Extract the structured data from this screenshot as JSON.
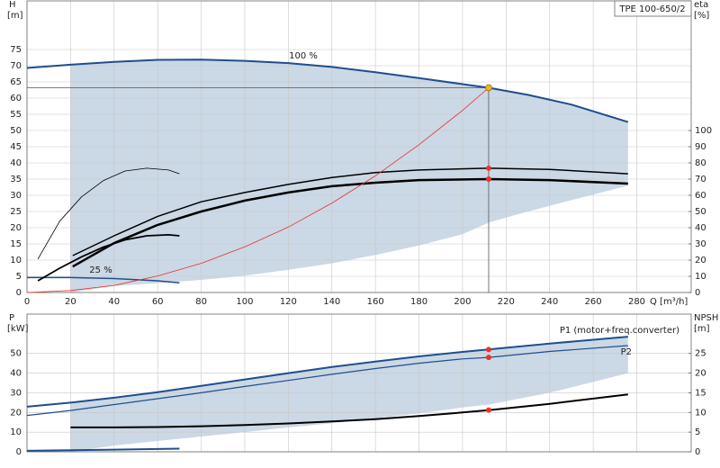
{
  "chart_data": [
    {
      "type": "line",
      "title": "TPE 100-650/2",
      "x_label": "Q [m³/h]",
      "y_label": "H",
      "y_unit": "[m]",
      "y2_label": "eta",
      "y2_unit": "[%]",
      "xlim": [
        0,
        305
      ],
      "xticks": [
        0,
        20,
        40,
        60,
        80,
        100,
        120,
        140,
        160,
        180,
        200,
        220,
        240,
        260,
        280
      ],
      "ylim": [
        0,
        90
      ],
      "yticks": [
        0,
        5,
        10,
        15,
        20,
        25,
        30,
        35,
        40,
        45,
        50,
        55,
        60,
        65,
        70,
        75
      ],
      "y2lim": [
        0,
        180
      ],
      "y2ticks": [
        0,
        10,
        20,
        30,
        40,
        50,
        60,
        70,
        80,
        90,
        100
      ],
      "grid": true,
      "band": {
        "color": "#cbd8e5",
        "x": [
          20,
          40,
          60,
          80,
          100,
          120,
          140,
          160,
          180,
          200,
          212,
          230,
          250,
          276
        ],
        "upper": [
          70.3,
          71.2,
          71.8,
          71.9,
          71.5,
          70.8,
          69.6,
          68.0,
          66.2,
          64.3,
          63.2,
          61.0,
          58.0,
          52.6
        ],
        "lower": [
          0,
          2,
          2.9,
          3.9,
          5.2,
          7,
          9,
          11.6,
          14.5,
          18,
          21.6,
          25,
          28.5,
          33
        ]
      },
      "series": [
        {
          "name": "100 %",
          "color": "#1f4e8c",
          "width": 2,
          "x": [
            0,
            20,
            40,
            60,
            80,
            100,
            120,
            140,
            160,
            180,
            200,
            212,
            230,
            250,
            276
          ],
          "values": [
            69.3,
            70.3,
            71.2,
            71.8,
            71.9,
            71.5,
            70.8,
            69.6,
            68.0,
            66.2,
            64.3,
            63.2,
            61.0,
            58.0,
            52.6
          ]
        },
        {
          "name": "25 %",
          "color": "#1f4e8c",
          "width": 1.5,
          "x": [
            0,
            20,
            40,
            60,
            70
          ],
          "values": [
            4.6,
            4.6,
            4.3,
            3.6,
            3.0
          ]
        },
        {
          "color": "#000000",
          "width": 1.5,
          "axis": "y2",
          "x": [
            21,
            40,
            60,
            80,
            100,
            120,
            140,
            160,
            180,
            212,
            240,
            276
          ],
          "values": [
            22.8,
            35,
            47,
            56,
            61.7,
            66.7,
            71,
            74,
            75.6,
            76.7,
            76,
            73.3
          ]
        },
        {
          "color": "#000000",
          "width": 2.5,
          "axis": "y2",
          "x": [
            21,
            40,
            60,
            80,
            100,
            120,
            140,
            160,
            180,
            212,
            240,
            276
          ],
          "values": [
            16,
            30.5,
            41.7,
            50,
            56.7,
            61.7,
            65.6,
            67.8,
            69.4,
            70,
            69.4,
            67.2
          ]
        },
        {
          "color": "#000000",
          "width": 0.8,
          "axis": "y2",
          "x": [
            5,
            15,
            25,
            35,
            45,
            55,
            65,
            70
          ],
          "values": [
            20.6,
            44,
            59,
            69,
            75,
            76.7,
            75.6,
            73.3
          ]
        },
        {
          "color": "#000000",
          "width": 1.8,
          "axis": "y2",
          "x": [
            5,
            15,
            25,
            35,
            45,
            55,
            65,
            70
          ],
          "values": [
            7.2,
            15,
            22,
            28,
            32.5,
            35,
            35.6,
            35
          ]
        },
        {
          "color": "#e8322c",
          "width": 0.8,
          "x": [
            0,
            20,
            40,
            60,
            80,
            100,
            120,
            140,
            160,
            180,
            200,
            212
          ],
          "values": [
            0,
            0.6,
            2.2,
            5.1,
            9,
            14.1,
            20.2,
            27.6,
            36,
            45.6,
            56.2,
            63.2
          ]
        }
      ],
      "duty_point": {
        "x": 212,
        "y": 63.2,
        "color": "#f5b324"
      },
      "points": [
        {
          "x": 212,
          "y": 76.7,
          "axis": "y2",
          "color": "#e8322c"
        },
        {
          "x": 212,
          "y": 70,
          "axis": "y2",
          "color": "#e8322c"
        }
      ]
    },
    {
      "type": "line",
      "y_label": "P",
      "y_unit": "[kW]",
      "y2_label": "NPSH",
      "y2_unit": "[m]",
      "xlim": [
        0,
        305
      ],
      "xticks": [
        0,
        20,
        40,
        60,
        80,
        100,
        120,
        140,
        160,
        180,
        200,
        220,
        240,
        260,
        280
      ],
      "ylim": [
        0,
        70
      ],
      "yticks": [
        0,
        10,
        20,
        30,
        40,
        50
      ],
      "y2lim": [
        0,
        35
      ],
      "y2ticks": [
        0,
        5,
        10,
        15,
        20,
        25
      ],
      "grid": true,
      "band": {
        "color": "#cbd8e5",
        "x": [
          20,
          40,
          60,
          80,
          100,
          120,
          140,
          160,
          180,
          200,
          212,
          240,
          276
        ],
        "upper": [
          25,
          27.5,
          30.3,
          33.5,
          36.8,
          40,
          43.1,
          45.9,
          48.5,
          50.8,
          52,
          55,
          58.5
        ],
        "lower": [
          0,
          3.2,
          5.5,
          7.8,
          10,
          12.4,
          14.5,
          17,
          19.5,
          22.5,
          24,
          30,
          40
        ]
      },
      "series": [
        {
          "name": "P1 (motor+freq.converter)",
          "color": "#1f4e8c",
          "width": 2,
          "x": [
            0,
            20,
            40,
            60,
            80,
            100,
            120,
            140,
            160,
            180,
            200,
            212,
            240,
            276
          ],
          "values": [
            22.9,
            25,
            27.5,
            30.3,
            33.5,
            36.8,
            40,
            43.1,
            45.9,
            48.5,
            50.8,
            52,
            55,
            58.5
          ]
        },
        {
          "name": "P2",
          "color": "#1f4e8c",
          "width": 1.2,
          "x": [
            0,
            20,
            40,
            60,
            80,
            100,
            120,
            140,
            160,
            180,
            200,
            212,
            240,
            276
          ],
          "values": [
            18.5,
            21,
            24,
            27,
            30,
            33.2,
            36.3,
            39.4,
            42.3,
            45,
            47.2,
            48,
            51,
            54
          ]
        },
        {
          "color": "#000000",
          "width": 2,
          "axis": "y2",
          "x": [
            20,
            40,
            60,
            80,
            100,
            120,
            140,
            160,
            180,
            200,
            212,
            240,
            276
          ],
          "values": [
            6.2,
            6.2,
            6.3,
            6.5,
            6.8,
            7.2,
            7.7,
            8.3,
            9.1,
            10,
            10.6,
            12.2,
            14.6
          ]
        },
        {
          "color": "#1f4e8c",
          "width": 2,
          "x": [
            0,
            20,
            40,
            60,
            70
          ],
          "values": [
            0.5,
            0.8,
            1.1,
            1.4,
            1.6
          ]
        }
      ],
      "points": [
        {
          "x": 212,
          "y": 52,
          "color": "#e8322c"
        },
        {
          "x": 212,
          "y": 48,
          "color": "#e8322c"
        },
        {
          "x": 212,
          "y": 10.6,
          "axis": "y2",
          "color": "#e8322c"
        }
      ]
    }
  ]
}
